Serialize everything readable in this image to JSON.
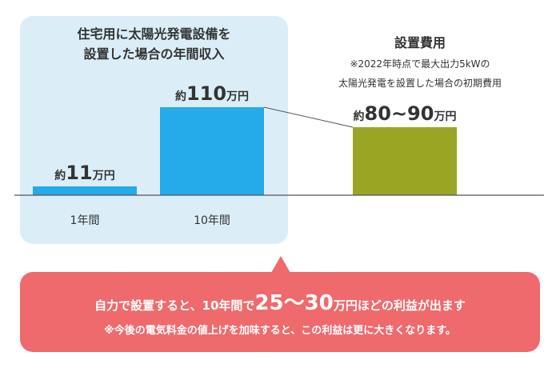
{
  "panel": {
    "title": "住宅用に太陽光発電設備を\n設置した場合の年間収入"
  },
  "cost": {
    "title": "設置費用",
    "note": "※2022年時点で最大出力5kWの\n太陽光発電を設置した場合の初期費用"
  },
  "callout": {
    "main_prefix": "自力で設置すると、10年間で",
    "main_highlight": "25～30",
    "main_suffix": "万円ほどの利益が出ます",
    "note": "※今後の電気料金の値上げを加味すると、この利益は更に大きくなります。"
  },
  "chart_data": {
    "type": "bar",
    "unit": "万円",
    "categories": [
      "1年間",
      "10年間",
      ""
    ],
    "values": [
      11,
      110,
      85
    ],
    "value_labels": [
      {
        "prefix": "約",
        "number": "11",
        "unit": "万円"
      },
      {
        "prefix": "約",
        "number": "110",
        "unit": "万円"
      },
      {
        "prefix": "約",
        "number": "80~90",
        "unit": "万円"
      }
    ],
    "colors": [
      "#25aaea",
      "#25aaea",
      "#9ba524"
    ],
    "ylim": [
      0,
      120
    ],
    "grid": false
  }
}
